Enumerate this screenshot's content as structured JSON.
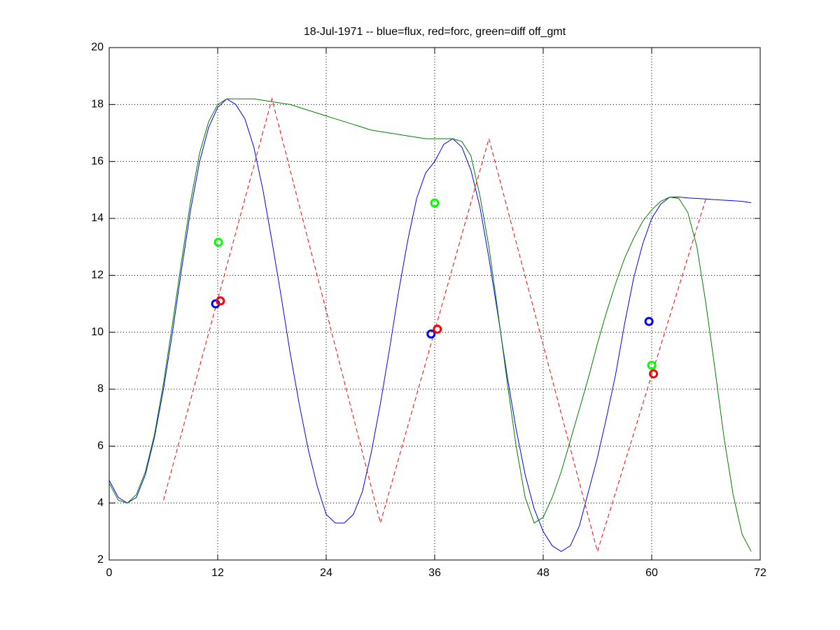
{
  "chart_data": {
    "type": "line",
    "title": "18-Jul-1971 -- blue=flux, red=forc, green=diff off_gmt",
    "xlim": [
      0,
      72
    ],
    "xticks": [
      0,
      12,
      24,
      36,
      48,
      60,
      72
    ],
    "ylim": [
      2,
      20
    ],
    "yticks": [
      2,
      4,
      6,
      8,
      10,
      12,
      14,
      16,
      18,
      20
    ],
    "grid": true,
    "series": [
      {
        "color": "#0000ff",
        "line": "solid",
        "marker": "none",
        "x": [
          0,
          1,
          2,
          3,
          4,
          5,
          6,
          7,
          8,
          9,
          10,
          11,
          12,
          13,
          14,
          15,
          16,
          17,
          18,
          19,
          20,
          21,
          22,
          23,
          24,
          25,
          26,
          27,
          28,
          29,
          30,
          31,
          32,
          33,
          34,
          35,
          36,
          37,
          38,
          39,
          40,
          41,
          42,
          43,
          44,
          45,
          46,
          47,
          48,
          49,
          50,
          51,
          52,
          53,
          54,
          55,
          56,
          57,
          58,
          59,
          60,
          61,
          62,
          63,
          64,
          65,
          66,
          67,
          68,
          69,
          70,
          71
        ],
        "values": [
          4.8,
          4.2,
          4.0,
          4.2,
          5.0,
          6.3,
          8.0,
          10.0,
          12.2,
          14.3,
          16.0,
          17.2,
          17.9,
          18.2,
          18.0,
          17.5,
          16.5,
          15.0,
          13.2,
          11.3,
          9.3,
          7.5,
          5.9,
          4.6,
          3.6,
          3.3,
          3.3,
          3.6,
          4.4,
          5.8,
          7.5,
          9.4,
          11.4,
          13.2,
          14.7,
          15.6,
          16.0,
          16.6,
          16.8,
          16.5,
          15.7,
          14.4,
          12.6,
          10.6,
          8.5,
          6.6,
          5.0,
          3.8,
          3.0,
          2.5,
          2.3,
          2.5,
          3.2,
          4.4,
          5.6,
          7.0,
          8.5,
          10.3,
          11.9,
          13.1,
          14.0,
          14.5,
          14.75,
          14.75,
          14.72,
          14.7,
          14.68,
          14.66,
          14.64,
          14.62,
          14.6,
          14.55
        ]
      },
      {
        "color": "#008000",
        "line": "solid",
        "marker": "none",
        "x": [
          0,
          1,
          2,
          3,
          4,
          5,
          6,
          7,
          8,
          9,
          10,
          11,
          12,
          13,
          14,
          15,
          16,
          17,
          18,
          19,
          20,
          21,
          22,
          23,
          24,
          25,
          26,
          27,
          28,
          29,
          30,
          31,
          32,
          33,
          34,
          35,
          36,
          37,
          38,
          39,
          40,
          41,
          42,
          43,
          44,
          45,
          46,
          47,
          48,
          49,
          50,
          51,
          52,
          53,
          54,
          55,
          56,
          57,
          58,
          59,
          60,
          61,
          62,
          63,
          64,
          65,
          66,
          67,
          68,
          69,
          70,
          71
        ],
        "values": [
          4.7,
          4.1,
          4.0,
          4.3,
          5.1,
          6.4,
          8.2,
          10.3,
          12.5,
          14.6,
          16.3,
          17.4,
          18.0,
          18.2,
          18.2,
          18.2,
          18.2,
          18.15,
          18.1,
          18.05,
          18.0,
          17.9,
          17.8,
          17.7,
          17.6,
          17.5,
          17.4,
          17.3,
          17.2,
          17.1,
          17.05,
          17.0,
          16.95,
          16.9,
          16.85,
          16.8,
          16.8,
          16.8,
          16.8,
          16.7,
          16.2,
          14.8,
          13.0,
          10.7,
          8.3,
          6.0,
          4.2,
          3.3,
          3.5,
          4.2,
          5.1,
          6.2,
          7.3,
          8.4,
          9.6,
          10.7,
          11.7,
          12.6,
          13.3,
          13.9,
          14.3,
          14.6,
          14.75,
          14.7,
          14.2,
          13.0,
          11.0,
          8.7,
          6.3,
          4.3,
          2.9,
          2.3
        ]
      },
      {
        "color": "#ff0000",
        "line": "dashed",
        "marker": "none",
        "x": [
          6,
          18,
          30,
          42,
          54,
          66
        ],
        "values": [
          4.1,
          18.2,
          3.3,
          16.8,
          2.3,
          14.7
        ]
      },
      {
        "color": "#0000ff",
        "line": "none",
        "marker": "circle",
        "x": [
          11.77,
          35.6,
          59.7
        ],
        "values": [
          11.0,
          9.94,
          10.38
        ]
      },
      {
        "color": "#ff0000",
        "line": "none",
        "marker": "circle",
        "x": [
          12.3,
          36.3,
          60.2
        ],
        "values": [
          11.1,
          10.11,
          8.54
        ]
      },
      {
        "color": "#00ff00",
        "line": "none",
        "marker": "circle",
        "x": [
          12.08,
          36.0,
          60.0
        ],
        "values": [
          13.16,
          14.54,
          8.84
        ]
      }
    ]
  }
}
